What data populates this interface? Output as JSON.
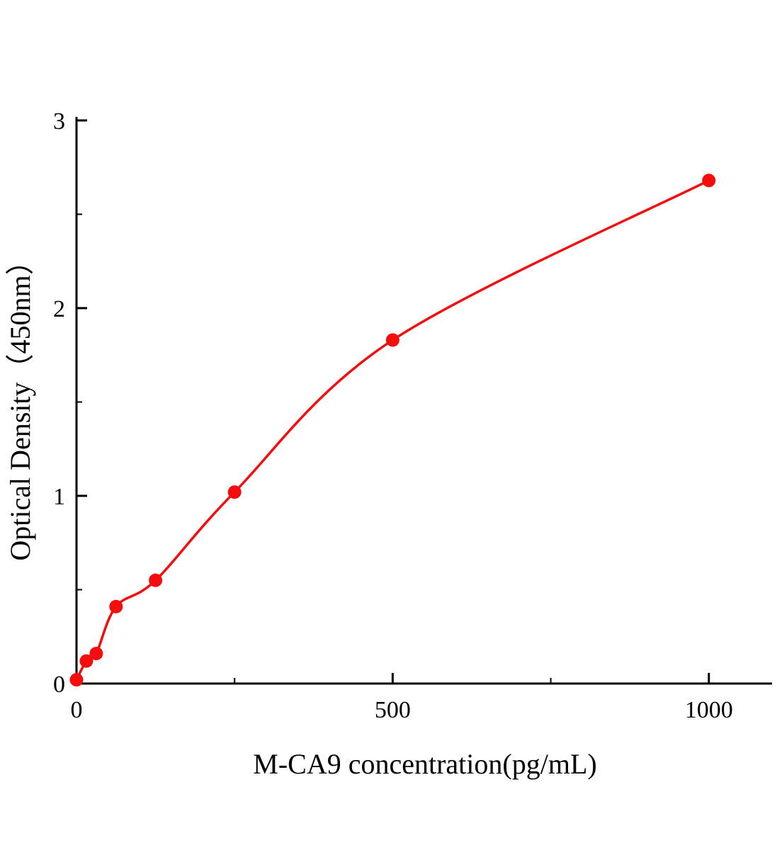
{
  "chart_data": {
    "type": "scatter",
    "title": "",
    "xlabel": "M-CA9 concentration(pg/mL)",
    "ylabel": "Optical Density（450nm）",
    "x": [
      0,
      15.6,
      31.2,
      62.5,
      125,
      250,
      500,
      1000
    ],
    "y": [
      0.02,
      0.12,
      0.16,
      0.41,
      0.55,
      1.02,
      1.83,
      2.68
    ],
    "xlim": [
      0,
      1100
    ],
    "ylim": [
      0,
      3
    ],
    "x_ticks": [
      0,
      500,
      1000
    ],
    "x_minor_ticks": [
      250,
      750
    ],
    "y_ticks": [
      0,
      1,
      2,
      3
    ],
    "y_minor_ticks": [
      0.5,
      1.5,
      2.5
    ],
    "curve_color": "#f50d0d",
    "point_color": "#f50d0d",
    "axis_color": "#000000",
    "grid": false,
    "legend": null,
    "point_radius": 9.5,
    "curve_width": 3.5
  }
}
